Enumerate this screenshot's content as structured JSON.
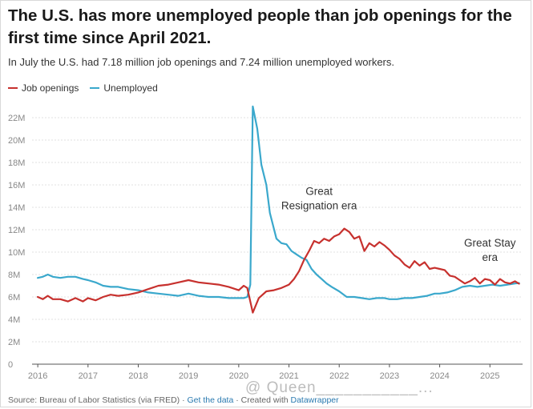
{
  "title": "The U.S. has more unemployed people than job openings for the first time since April 2021.",
  "subtitle": "In July the U.S. had 7.18 million job openings and 7.24 million unemployed workers.",
  "legend": {
    "job_openings": "Job openings",
    "unemployed": "Unemployed"
  },
  "colors": {
    "job_openings": "#c7312e",
    "unemployed": "#3aa8cc",
    "grid": "#e2e2e2",
    "axis_text": "#888888"
  },
  "source": {
    "prefix": "Source: Bureau of Labor Statistics (via FRED) · ",
    "get_data": "Get the data",
    "middle": " · Created with ",
    "datawrapper": "Datawrapper"
  },
  "watermark": "@ Queen___________...",
  "chart_data": {
    "type": "line",
    "x_unit": "year",
    "xlim": [
      2015.95,
      2025.65
    ],
    "ylim": [
      0,
      22
    ],
    "y_ticks": [
      0,
      2,
      4,
      6,
      8,
      10,
      12,
      14,
      16,
      18,
      20,
      22
    ],
    "y_tick_labels": [
      "0",
      "2M",
      "4M",
      "6M",
      "8M",
      "10M",
      "12M",
      "14M",
      "16M",
      "18M",
      "20M",
      "22M"
    ],
    "x_ticks": [
      2016,
      2017,
      2018,
      2019,
      2020,
      2021,
      2022,
      2023,
      2024,
      2025
    ],
    "x_tick_labels": [
      "2016",
      "2017",
      "2018",
      "2019",
      "2020",
      "2021",
      "2022",
      "2023",
      "2024",
      "2025"
    ],
    "grid": true,
    "legend_position": "top-left",
    "annotations": [
      {
        "text": [
          "Great",
          "Resignation era"
        ],
        "x": 2021.6,
        "y": 15.1
      },
      {
        "text": [
          "Great Stay",
          "era"
        ],
        "x": 2025.0,
        "y": 10.5
      }
    ],
    "series": [
      {
        "name": "Job openings",
        "color": "#c7312e",
        "points": [
          [
            2016.0,
            6.0
          ],
          [
            2016.1,
            5.8
          ],
          [
            2016.2,
            6.1
          ],
          [
            2016.3,
            5.8
          ],
          [
            2016.45,
            5.8
          ],
          [
            2016.6,
            5.6
          ],
          [
            2016.75,
            5.9
          ],
          [
            2016.9,
            5.6
          ],
          [
            2017.0,
            5.9
          ],
          [
            2017.15,
            5.7
          ],
          [
            2017.3,
            6.0
          ],
          [
            2017.45,
            6.2
          ],
          [
            2017.6,
            6.1
          ],
          [
            2017.8,
            6.2
          ],
          [
            2018.0,
            6.4
          ],
          [
            2018.2,
            6.7
          ],
          [
            2018.4,
            7.0
          ],
          [
            2018.6,
            7.1
          ],
          [
            2018.8,
            7.3
          ],
          [
            2019.0,
            7.5
          ],
          [
            2019.2,
            7.3
          ],
          [
            2019.4,
            7.2
          ],
          [
            2019.6,
            7.1
          ],
          [
            2019.8,
            6.9
          ],
          [
            2020.0,
            6.6
          ],
          [
            2020.1,
            7.0
          ],
          [
            2020.17,
            6.8
          ],
          [
            2020.28,
            4.6
          ],
          [
            2020.4,
            5.9
          ],
          [
            2020.55,
            6.5
          ],
          [
            2020.7,
            6.6
          ],
          [
            2020.85,
            6.8
          ],
          [
            2021.0,
            7.1
          ],
          [
            2021.1,
            7.6
          ],
          [
            2021.2,
            8.3
          ],
          [
            2021.3,
            9.3
          ],
          [
            2021.4,
            10.1
          ],
          [
            2021.5,
            11.0
          ],
          [
            2021.6,
            10.8
          ],
          [
            2021.7,
            11.2
          ],
          [
            2021.8,
            11.0
          ],
          [
            2021.9,
            11.4
          ],
          [
            2022.0,
            11.6
          ],
          [
            2022.1,
            12.1
          ],
          [
            2022.2,
            11.8
          ],
          [
            2022.3,
            11.2
          ],
          [
            2022.4,
            11.4
          ],
          [
            2022.5,
            10.1
          ],
          [
            2022.6,
            10.8
          ],
          [
            2022.7,
            10.5
          ],
          [
            2022.8,
            10.9
          ],
          [
            2022.9,
            10.6
          ],
          [
            2023.0,
            10.2
          ],
          [
            2023.1,
            9.7
          ],
          [
            2023.2,
            9.4
          ],
          [
            2023.3,
            8.9
          ],
          [
            2023.4,
            8.6
          ],
          [
            2023.5,
            9.2
          ],
          [
            2023.6,
            8.8
          ],
          [
            2023.7,
            9.1
          ],
          [
            2023.8,
            8.5
          ],
          [
            2023.9,
            8.6
          ],
          [
            2024.0,
            8.5
          ],
          [
            2024.1,
            8.4
          ],
          [
            2024.2,
            7.9
          ],
          [
            2024.3,
            7.8
          ],
          [
            2024.4,
            7.5
          ],
          [
            2024.5,
            7.2
          ],
          [
            2024.6,
            7.4
          ],
          [
            2024.7,
            7.7
          ],
          [
            2024.8,
            7.2
          ],
          [
            2024.9,
            7.6
          ],
          [
            2025.0,
            7.5
          ],
          [
            2025.1,
            7.1
          ],
          [
            2025.2,
            7.6
          ],
          [
            2025.3,
            7.3
          ],
          [
            2025.4,
            7.2
          ],
          [
            2025.5,
            7.4
          ],
          [
            2025.58,
            7.18
          ]
        ]
      },
      {
        "name": "Unemployed",
        "color": "#3aa8cc",
        "points": [
          [
            2016.0,
            7.7
          ],
          [
            2016.1,
            7.8
          ],
          [
            2016.2,
            8.0
          ],
          [
            2016.3,
            7.8
          ],
          [
            2016.45,
            7.7
          ],
          [
            2016.6,
            7.8
          ],
          [
            2016.75,
            7.8
          ],
          [
            2016.9,
            7.6
          ],
          [
            2017.0,
            7.5
          ],
          [
            2017.15,
            7.3
          ],
          [
            2017.3,
            7.0
          ],
          [
            2017.45,
            6.9
          ],
          [
            2017.6,
            6.9
          ],
          [
            2017.8,
            6.7
          ],
          [
            2018.0,
            6.6
          ],
          [
            2018.2,
            6.4
          ],
          [
            2018.4,
            6.3
          ],
          [
            2018.6,
            6.2
          ],
          [
            2018.8,
            6.1
          ],
          [
            2019.0,
            6.3
          ],
          [
            2019.2,
            6.1
          ],
          [
            2019.4,
            6.0
          ],
          [
            2019.6,
            6.0
          ],
          [
            2019.8,
            5.9
          ],
          [
            2020.0,
            5.9
          ],
          [
            2020.1,
            5.9
          ],
          [
            2020.17,
            6.0
          ],
          [
            2020.23,
            7.1
          ],
          [
            2020.28,
            23.0
          ],
          [
            2020.37,
            21.0
          ],
          [
            2020.45,
            17.8
          ],
          [
            2020.55,
            16.0
          ],
          [
            2020.62,
            13.5
          ],
          [
            2020.75,
            11.2
          ],
          [
            2020.85,
            10.8
          ],
          [
            2020.95,
            10.7
          ],
          [
            2021.05,
            10.1
          ],
          [
            2021.15,
            9.8
          ],
          [
            2021.25,
            9.5
          ],
          [
            2021.35,
            9.3
          ],
          [
            2021.45,
            8.5
          ],
          [
            2021.55,
            8.0
          ],
          [
            2021.65,
            7.6
          ],
          [
            2021.75,
            7.2
          ],
          [
            2021.85,
            6.9
          ],
          [
            2022.0,
            6.5
          ],
          [
            2022.15,
            6.0
          ],
          [
            2022.3,
            6.0
          ],
          [
            2022.45,
            5.9
          ],
          [
            2022.6,
            5.8
          ],
          [
            2022.75,
            5.9
          ],
          [
            2022.9,
            5.9
          ],
          [
            2023.0,
            5.8
          ],
          [
            2023.15,
            5.8
          ],
          [
            2023.3,
            5.9
          ],
          [
            2023.45,
            5.9
          ],
          [
            2023.6,
            6.0
          ],
          [
            2023.75,
            6.1
          ],
          [
            2023.9,
            6.3
          ],
          [
            2024.0,
            6.3
          ],
          [
            2024.15,
            6.4
          ],
          [
            2024.3,
            6.6
          ],
          [
            2024.45,
            6.9
          ],
          [
            2024.6,
            7.0
          ],
          [
            2024.75,
            6.9
          ],
          [
            2024.9,
            7.0
          ],
          [
            2025.05,
            7.1
          ],
          [
            2025.2,
            7.0
          ],
          [
            2025.35,
            7.1
          ],
          [
            2025.5,
            7.2
          ],
          [
            2025.58,
            7.24
          ]
        ]
      }
    ]
  }
}
